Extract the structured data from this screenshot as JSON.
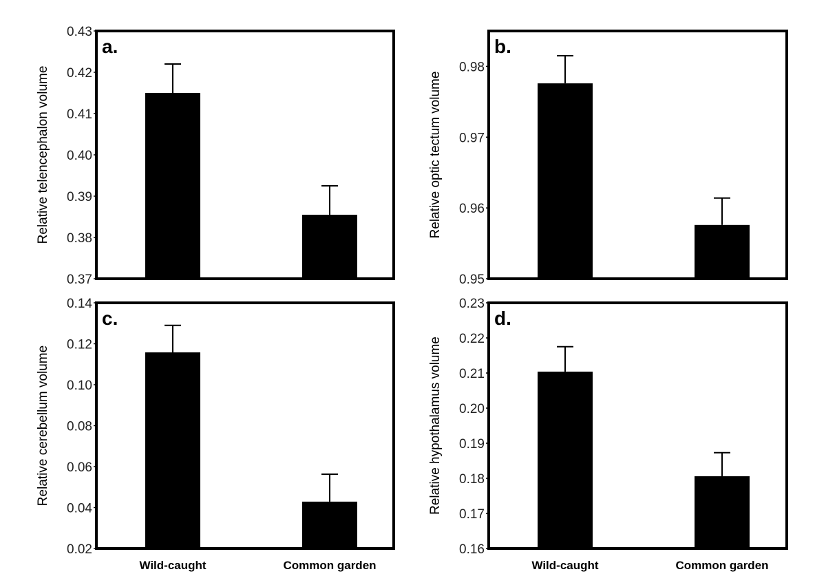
{
  "chart_data": [
    {
      "type": "bar",
      "panel_label": "a.",
      "categories": [
        "Wild-caught",
        "Common garden"
      ],
      "values": [
        0.415,
        0.3855
      ],
      "error_upper": [
        0.422,
        0.3925
      ],
      "ylabel": "Relative telencephalon volume",
      "ylim": [
        0.37,
        0.43
      ],
      "yticks": [
        "0.37",
        "0.38",
        "0.39",
        "0.40",
        "0.41",
        "0.42",
        "0.43"
      ],
      "show_xticklabels": false,
      "grid": false,
      "bar_color": "#000000"
    },
    {
      "type": "bar",
      "panel_label": "b.",
      "categories": [
        "Wild-caught",
        "Common garden"
      ],
      "values": [
        0.9776,
        0.9576
      ],
      "error_upper": [
        0.9815,
        0.9614
      ],
      "ylabel": "Relative optic tectum volume",
      "ylim": [
        0.95,
        0.985
      ],
      "yticks": [
        "0.95",
        "0.96",
        "0.97",
        "0.98"
      ],
      "show_xticklabels": false,
      "grid": false,
      "bar_color": "#000000"
    },
    {
      "type": "bar",
      "panel_label": "c.",
      "categories": [
        "Wild-caught",
        "Common garden"
      ],
      "values": [
        0.1158,
        0.0429
      ],
      "error_upper": [
        0.129,
        0.0563
      ],
      "ylabel": "Relative cerebellum volume",
      "ylim": [
        0.02,
        0.14
      ],
      "yticks": [
        "0.02",
        "0.04",
        "0.06",
        "0.08",
        "0.10",
        "0.12",
        "0.14"
      ],
      "show_xticklabels": true,
      "grid": false,
      "bar_color": "#000000"
    },
    {
      "type": "bar",
      "panel_label": "d.",
      "categories": [
        "Wild-caught",
        "Common garden"
      ],
      "values": [
        0.2104,
        0.1806
      ],
      "error_upper": [
        0.2175,
        0.1873
      ],
      "ylabel": "Relative hypothalamus volume",
      "ylim": [
        0.16,
        0.23
      ],
      "yticks": [
        "0.16",
        "0.17",
        "0.18",
        "0.19",
        "0.20",
        "0.21",
        "0.22",
        "0.23"
      ],
      "show_xticklabels": true,
      "grid": false,
      "bar_color": "#000000"
    }
  ]
}
